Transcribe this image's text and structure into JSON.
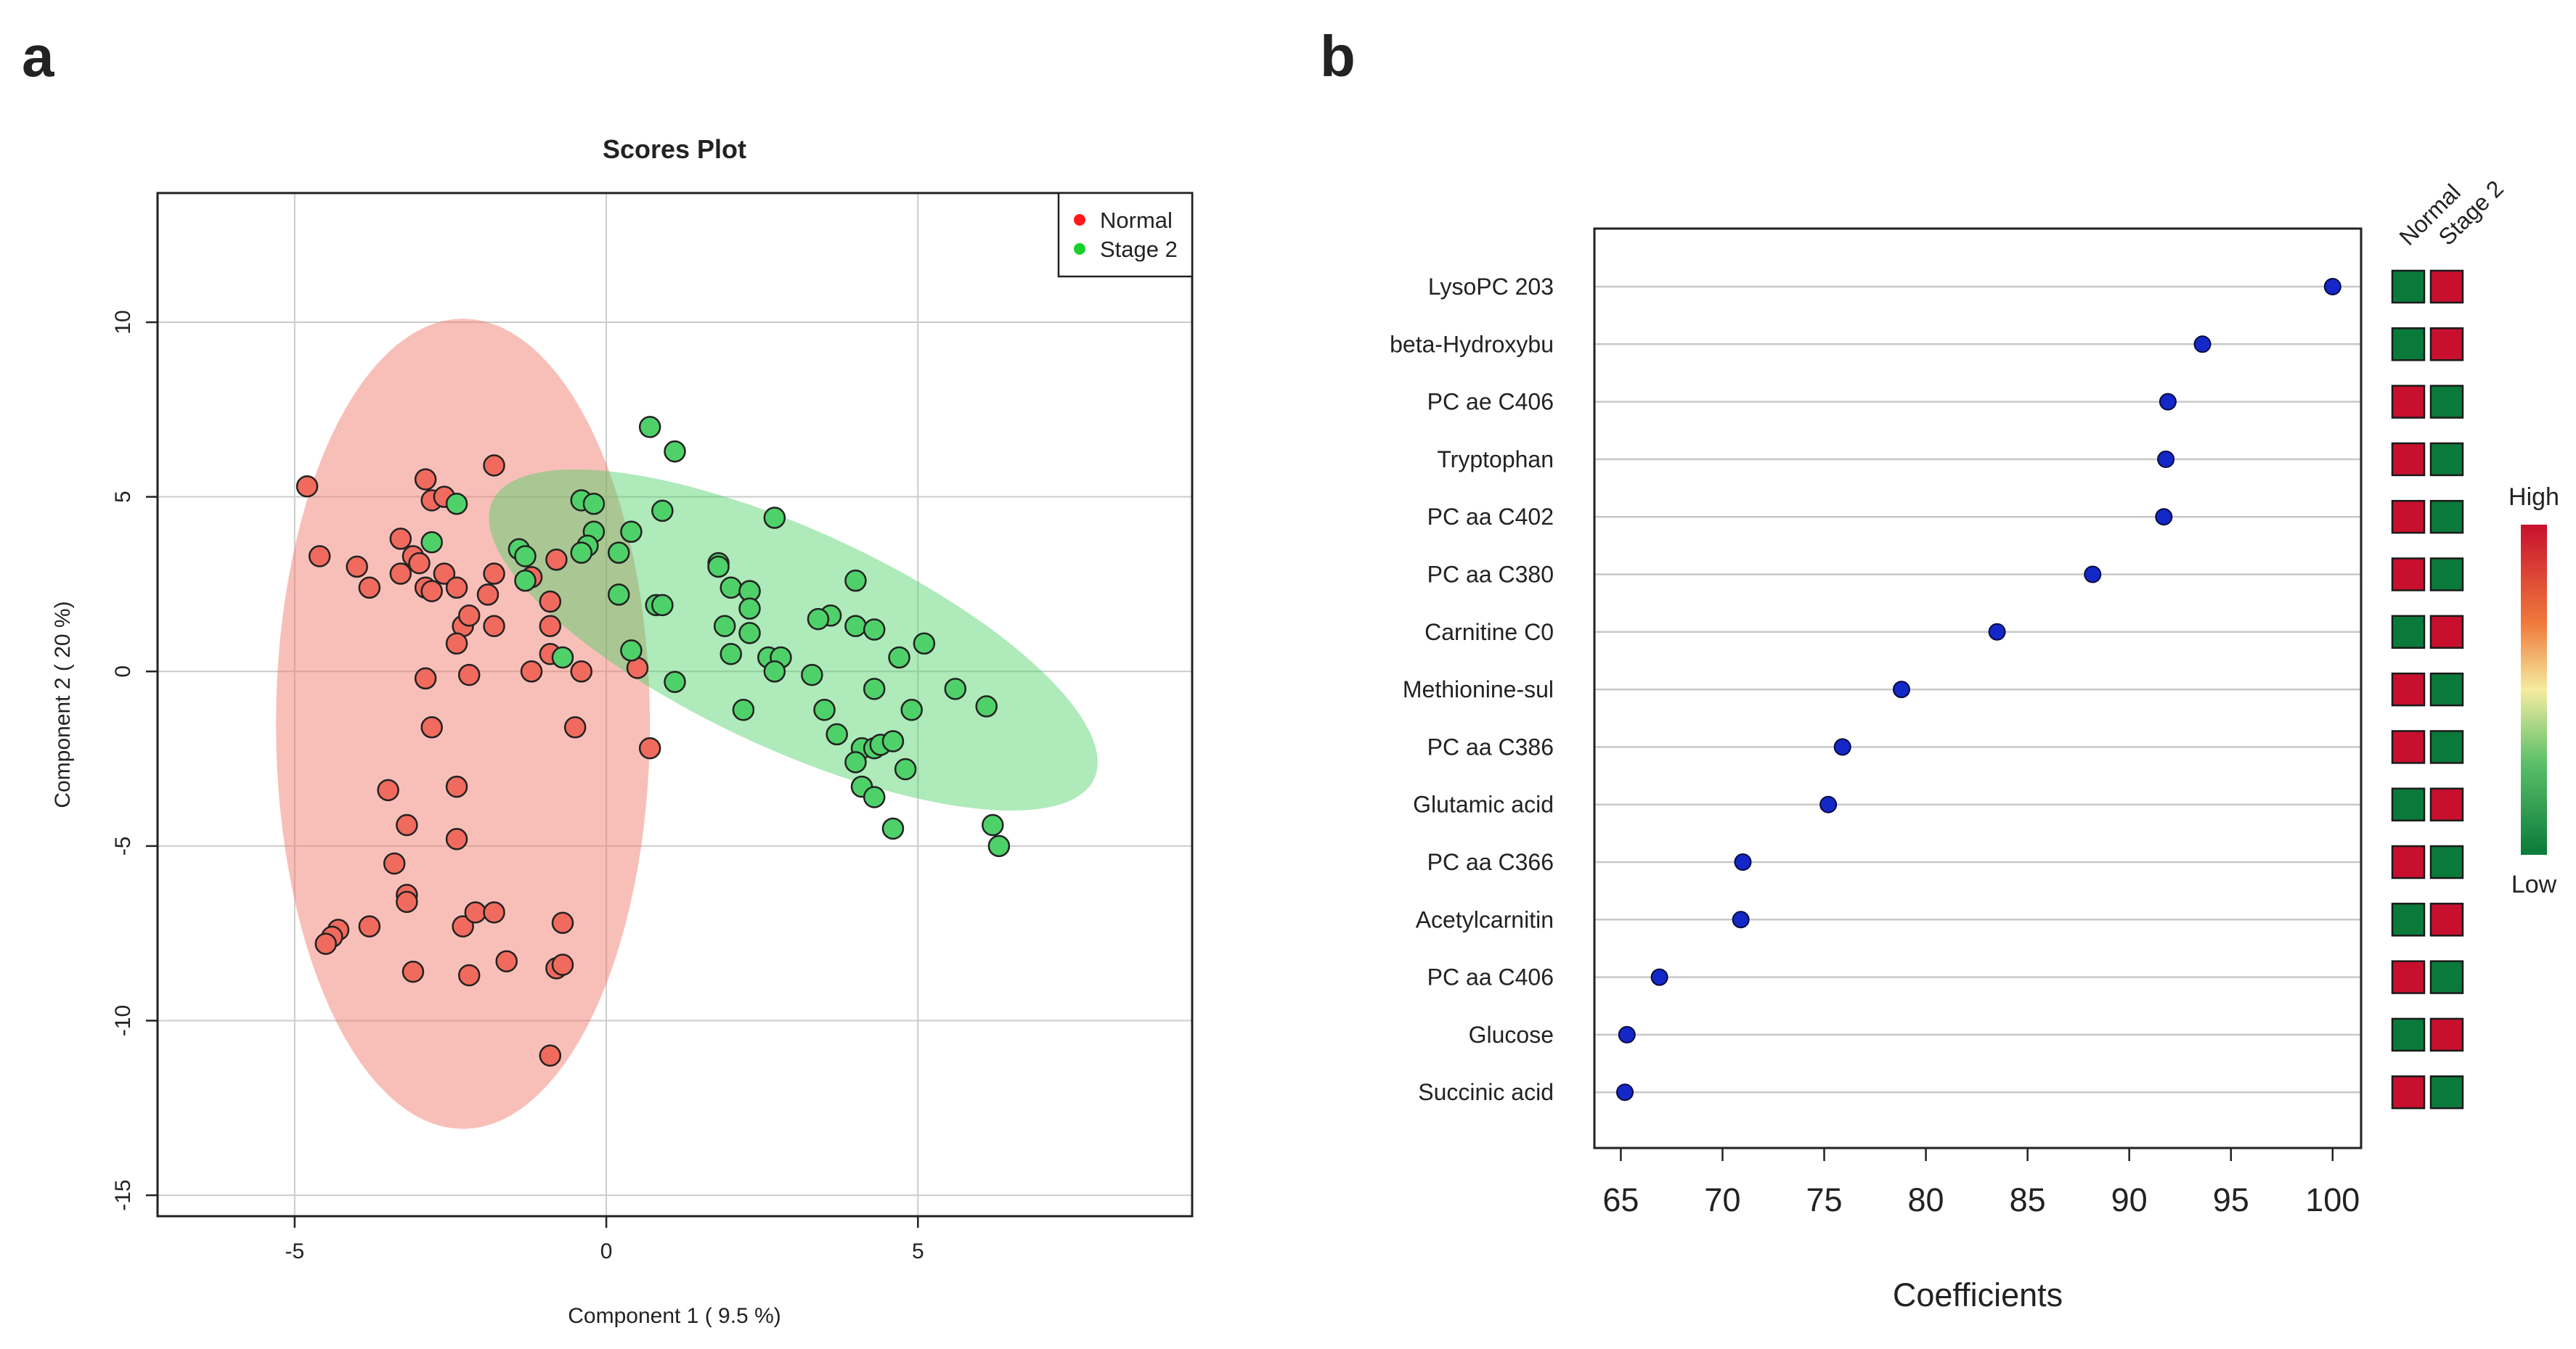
{
  "panels": {
    "a_label": "a",
    "b_label": "b"
  },
  "colors": {
    "normal": "#f06a5e",
    "normal_ellipse": "#f7b6ab",
    "stage2": "#4fd16a",
    "stage2_ellipse": "#a5e8b3",
    "overlap": "#d4c79a",
    "point_blue": "#1428c8",
    "high": "#c8102e",
    "low": "#0a7a3a",
    "grid": "#cccccc"
  },
  "chart_data": [
    {
      "type": "scatter",
      "title": "Scores Plot",
      "xlabel": "Component 1 ( 9.5 %)",
      "ylabel": "Component 2 ( 20 %)",
      "xlim": [
        -7.2,
        9.4
      ],
      "ylim": [
        -15.6,
        13.7
      ],
      "xticks": [
        -5,
        0,
        5
      ],
      "yticks": [
        -15,
        -10,
        -5,
        0,
        5,
        10
      ],
      "legend": [
        "Normal",
        "Stage 2"
      ],
      "legend_position": "top-right",
      "ellipses": [
        {
          "series": "Normal",
          "cx": -2.3,
          "cy": -1.5,
          "rx": 3.0,
          "ry": 11.6,
          "angle_deg": 0
        },
        {
          "series": "Stage 2",
          "cx": 3.0,
          "cy": 0.9,
          "rx": 6.4,
          "ry": 2.6,
          "angle_deg": -45
        }
      ],
      "series": [
        {
          "name": "Normal",
          "points": [
            [
              -4.8,
              5.3
            ],
            [
              -4.6,
              3.3
            ],
            [
              -4.0,
              3.0
            ],
            [
              -3.8,
              2.4
            ],
            [
              -3.3,
              3.8
            ],
            [
              -3.3,
              2.8
            ],
            [
              -3.1,
              3.3
            ],
            [
              -3.0,
              3.1
            ],
            [
              -2.9,
              5.5
            ],
            [
              -2.8,
              4.9
            ],
            [
              -2.6,
              5.0
            ],
            [
              -2.9,
              2.4
            ],
            [
              -2.8,
              2.3
            ],
            [
              -2.6,
              2.8
            ],
            [
              -2.4,
              2.4
            ],
            [
              -2.3,
              1.3
            ],
            [
              -2.4,
              0.8
            ],
            [
              -2.2,
              1.6
            ],
            [
              -1.9,
              2.2
            ],
            [
              -1.8,
              2.8
            ],
            [
              -1.8,
              1.3
            ],
            [
              -1.8,
              5.9
            ],
            [
              -1.2,
              2.7
            ],
            [
              -0.8,
              3.2
            ],
            [
              -0.9,
              1.3
            ],
            [
              -0.9,
              2.0
            ],
            [
              -1.2,
              0.0
            ],
            [
              -0.9,
              0.5
            ],
            [
              -0.4,
              0.0
            ],
            [
              0.5,
              0.1
            ],
            [
              -2.9,
              -0.2
            ],
            [
              -2.2,
              -0.1
            ],
            [
              -2.8,
              -1.6
            ],
            [
              -0.5,
              -1.6
            ],
            [
              0.7,
              -2.2
            ],
            [
              -3.5,
              -3.4
            ],
            [
              -2.4,
              -3.3
            ],
            [
              -3.2,
              -4.4
            ],
            [
              -2.4,
              -4.8
            ],
            [
              -3.4,
              -5.5
            ],
            [
              -3.2,
              -6.4
            ],
            [
              -3.2,
              -6.6
            ],
            [
              -4.3,
              -7.4
            ],
            [
              -4.4,
              -7.6
            ],
            [
              -4.5,
              -7.8
            ],
            [
              -3.8,
              -7.3
            ],
            [
              -2.3,
              -7.3
            ],
            [
              -2.1,
              -6.9
            ],
            [
              -1.8,
              -6.9
            ],
            [
              -0.7,
              -7.2
            ],
            [
              -3.1,
              -8.6
            ],
            [
              -2.2,
              -8.7
            ],
            [
              -1.6,
              -8.3
            ],
            [
              -0.8,
              -8.5
            ],
            [
              -0.7,
              -8.4
            ],
            [
              -0.9,
              -11.0
            ]
          ]
        },
        {
          "name": "Stage 2",
          "points": [
            [
              0.7,
              7.0
            ],
            [
              1.1,
              6.3
            ],
            [
              0.9,
              4.6
            ],
            [
              -0.4,
              4.9
            ],
            [
              -0.2,
              4.8
            ],
            [
              -0.2,
              4.0
            ],
            [
              0.4,
              4.0
            ],
            [
              0.2,
              3.4
            ],
            [
              -1.4,
              3.5
            ],
            [
              -1.3,
              3.3
            ],
            [
              -0.3,
              3.6
            ],
            [
              -0.4,
              3.4
            ],
            [
              -1.3,
              2.6
            ],
            [
              0.2,
              2.2
            ],
            [
              0.8,
              1.9
            ],
            [
              0.9,
              1.9
            ],
            [
              -2.8,
              3.7
            ],
            [
              -2.4,
              4.8
            ],
            [
              1.8,
              3.1
            ],
            [
              1.8,
              3.0
            ],
            [
              2.0,
              2.4
            ],
            [
              2.3,
              2.3
            ],
            [
              2.3,
              2.3
            ],
            [
              2.7,
              4.4
            ],
            [
              4.0,
              2.6
            ],
            [
              3.6,
              1.6
            ],
            [
              3.4,
              1.5
            ],
            [
              4.0,
              1.3
            ],
            [
              4.3,
              1.2
            ],
            [
              2.3,
              1.1
            ],
            [
              2.3,
              1.8
            ],
            [
              1.9,
              1.3
            ],
            [
              2.0,
              0.5
            ],
            [
              2.6,
              0.4
            ],
            [
              2.8,
              0.4
            ],
            [
              2.7,
              0.0
            ],
            [
              3.3,
              -0.1
            ],
            [
              4.3,
              -0.5
            ],
            [
              4.7,
              0.4
            ],
            [
              5.1,
              0.8
            ],
            [
              5.6,
              -0.5
            ],
            [
              4.9,
              -1.1
            ],
            [
              3.5,
              -1.1
            ],
            [
              3.7,
              -1.8
            ],
            [
              4.1,
              -2.2
            ],
            [
              4.3,
              -2.2
            ],
            [
              4.4,
              -2.1
            ],
            [
              4.6,
              -2.0
            ],
            [
              4.0,
              -2.6
            ],
            [
              4.8,
              -2.8
            ],
            [
              4.1,
              -3.3
            ],
            [
              4.3,
              -3.6
            ],
            [
              4.6,
              -4.5
            ],
            [
              6.2,
              -4.4
            ],
            [
              6.3,
              -5.0
            ],
            [
              6.1,
              -1.0
            ],
            [
              2.2,
              -1.1
            ],
            [
              1.1,
              -0.3
            ],
            [
              0.4,
              0.6
            ],
            [
              -0.7,
              0.4
            ]
          ]
        }
      ]
    },
    {
      "type": "dot",
      "xlabel": "Coefficients",
      "xlim": [
        63.7,
        101.4
      ],
      "xticks": [
        65,
        70,
        75,
        80,
        85,
        90,
        95,
        100
      ],
      "heatmap_columns": [
        "Normal",
        "Stage 2"
      ],
      "heatmap_legend": {
        "high_label": "High",
        "low_label": "Low"
      },
      "items": [
        {
          "name": "LysoPC 203",
          "value": 100.0,
          "normal": "low",
          "stage2": "high"
        },
        {
          "name": "beta-Hydroxybu",
          "value": 93.6,
          "normal": "low",
          "stage2": "high"
        },
        {
          "name": "PC ae C406",
          "value": 91.9,
          "normal": "high",
          "stage2": "low"
        },
        {
          "name": "Tryptophan",
          "value": 91.8,
          "normal": "high",
          "stage2": "low"
        },
        {
          "name": "PC aa C402",
          "value": 91.7,
          "normal": "high",
          "stage2": "low"
        },
        {
          "name": "PC aa C380",
          "value": 88.2,
          "normal": "high",
          "stage2": "low"
        },
        {
          "name": "Carnitine C0",
          "value": 83.5,
          "normal": "low",
          "stage2": "high"
        },
        {
          "name": "Methionine-sul",
          "value": 78.8,
          "normal": "high",
          "stage2": "low"
        },
        {
          "name": "PC aa C386",
          "value": 75.9,
          "normal": "high",
          "stage2": "low"
        },
        {
          "name": "Glutamic acid",
          "value": 75.2,
          "normal": "low",
          "stage2": "high"
        },
        {
          "name": "PC aa C366",
          "value": 71.0,
          "normal": "high",
          "stage2": "low"
        },
        {
          "name": "Acetylcarnitin",
          "value": 70.9,
          "normal": "low",
          "stage2": "high"
        },
        {
          "name": "PC aa C406",
          "value": 66.9,
          "normal": "high",
          "stage2": "low"
        },
        {
          "name": "Glucose",
          "value": 65.3,
          "normal": "low",
          "stage2": "high"
        },
        {
          "name": "Succinic acid",
          "value": 65.2,
          "normal": "high",
          "stage2": "low"
        }
      ]
    }
  ]
}
